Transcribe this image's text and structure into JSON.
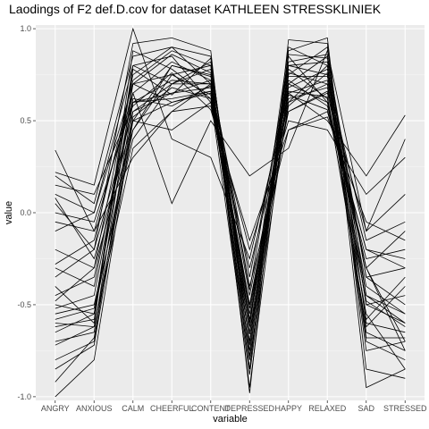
{
  "chart_data": {
    "type": "line",
    "title": "Laodings of F2 def.D.cov for dataset KATHLEEN STRESSKLINIEK",
    "xlabel": "variable",
    "ylabel": "value",
    "categories": [
      "ANGRY",
      "ANXIOUS",
      "CALM",
      "CHEERFUL",
      "CONTENT",
      "DEPRESSED",
      "HAPPY",
      "RELAXED",
      "SAD",
      "STRESSED"
    ],
    "ylim": [
      -1.02,
      1.02
    ],
    "yticks": [
      -1.0,
      -0.5,
      0.0,
      0.5,
      1.0
    ],
    "ytick_labels": [
      "-1.0",
      "-0.5",
      "0.0",
      "0.5",
      "1.0"
    ],
    "grid": true,
    "legend": "none",
    "colors": {
      "panel": "#ebebeb",
      "grid_major": "#ffffff",
      "grid_minor": "#f5f5f5",
      "line": "#000000",
      "tick_text": "#4d4d4d"
    },
    "series": [
      {
        "values": [
          -1.0,
          -0.8,
          0.5,
          0.8,
          0.75,
          -0.95,
          0.7,
          0.6,
          -0.3,
          -0.7
        ]
      },
      {
        "values": [
          -0.92,
          -0.68,
          0.55,
          0.7,
          0.7,
          -0.8,
          0.6,
          0.8,
          -0.5,
          -0.6
        ]
      },
      {
        "values": [
          -0.8,
          -0.7,
          0.6,
          0.65,
          0.72,
          -0.7,
          0.75,
          0.9,
          -0.6,
          -0.65
        ]
      },
      {
        "values": [
          -0.72,
          -0.62,
          0.45,
          0.75,
          0.8,
          -0.6,
          0.65,
          0.72,
          -0.4,
          -0.55
        ]
      },
      {
        "values": [
          -0.7,
          -0.65,
          0.7,
          0.6,
          0.65,
          -0.75,
          0.8,
          0.75,
          -0.7,
          -0.8
        ]
      },
      {
        "values": [
          -0.65,
          -0.55,
          0.8,
          0.85,
          0.6,
          -0.5,
          0.55,
          0.65,
          -0.3,
          -0.75
        ]
      },
      {
        "values": [
          -0.6,
          -0.62,
          0.35,
          0.55,
          0.7,
          -0.55,
          0.7,
          0.85,
          -0.35,
          -0.5
        ]
      },
      {
        "values": [
          -0.55,
          -0.5,
          0.4,
          0.7,
          0.78,
          -0.85,
          0.85,
          0.6,
          -0.55,
          -0.85
        ]
      },
      {
        "values": [
          -0.52,
          -0.45,
          0.65,
          0.82,
          0.72,
          -0.45,
          0.6,
          0.7,
          -0.45,
          -0.6
        ]
      },
      {
        "values": [
          -0.5,
          -0.55,
          0.5,
          0.6,
          0.66,
          -0.65,
          0.72,
          0.58,
          -0.2,
          -0.3
        ]
      },
      {
        "values": [
          -0.48,
          -0.3,
          0.75,
          0.9,
          0.85,
          -0.78,
          0.78,
          0.62,
          -0.62,
          -0.4
        ]
      },
      {
        "values": [
          -0.45,
          -0.35,
          0.6,
          0.72,
          0.7,
          -0.4,
          0.45,
          0.55,
          -0.25,
          -0.2
        ]
      },
      {
        "values": [
          -0.4,
          -0.6,
          0.88,
          0.78,
          0.62,
          -0.6,
          0.9,
          0.8,
          -0.75,
          -0.7
        ]
      },
      {
        "values": [
          -0.35,
          -0.2,
          0.55,
          0.65,
          0.68,
          -0.5,
          0.62,
          0.68,
          -0.3,
          -0.1
        ]
      },
      {
        "values": [
          -0.3,
          -0.4,
          0.7,
          0.75,
          0.64,
          -0.7,
          0.68,
          0.78,
          -0.5,
          -0.45
        ]
      },
      {
        "values": [
          -0.2,
          -0.3,
          0.45,
          0.8,
          0.74,
          -0.35,
          0.74,
          0.74,
          -0.15,
          -0.05
        ]
      },
      {
        "values": [
          -0.1,
          0.0,
          0.8,
          0.7,
          0.82,
          -0.62,
          0.82,
          0.86,
          -0.45,
          -0.55
        ]
      },
      {
        "values": [
          -0.05,
          -0.1,
          0.3,
          0.55,
          0.58,
          -0.3,
          0.55,
          0.66,
          -0.1,
          0.1
        ]
      },
      {
        "values": [
          0.0,
          -0.05,
          0.6,
          0.62,
          0.66,
          -0.52,
          0.64,
          0.56,
          -0.2,
          -0.25
        ]
      },
      {
        "values": [
          0.05,
          -0.2,
          0.92,
          0.95,
          0.88,
          -0.98,
          0.94,
          0.92,
          -0.95,
          -0.85
        ]
      },
      {
        "values": [
          0.1,
          0.0,
          0.7,
          0.86,
          0.76,
          -0.42,
          0.8,
          0.82,
          -0.35,
          -0.3
        ]
      },
      {
        "values": [
          0.08,
          -0.25,
          0.5,
          0.45,
          0.6,
          -0.2,
          0.5,
          0.45,
          0.1,
          0.3
        ]
      },
      {
        "values": [
          0.2,
          0.05,
          0.85,
          0.9,
          0.7,
          -0.85,
          0.88,
          0.95,
          -0.85,
          -0.9
        ]
      },
      {
        "values": [
          0.22,
          0.15,
          1.0,
          0.4,
          0.3,
          -0.25,
          0.65,
          0.5,
          0.2,
          0.53
        ]
      },
      {
        "values": [
          0.34,
          -0.1,
          0.65,
          0.05,
          0.5,
          0.2,
          0.35,
          0.88,
          -0.1,
          0.4
        ]
      },
      {
        "values": [
          -0.85,
          -0.72,
          0.52,
          0.68,
          0.62,
          -0.88,
          0.76,
          0.7,
          -0.65,
          -0.75
        ]
      },
      {
        "values": [
          -0.58,
          -0.52,
          0.62,
          0.58,
          0.69,
          -0.58,
          0.66,
          0.63,
          -0.48,
          -0.62
        ]
      },
      {
        "values": [
          -0.28,
          -0.15,
          0.72,
          0.88,
          0.8,
          -0.66,
          0.58,
          0.76,
          -0.58,
          -0.35
        ]
      },
      {
        "values": [
          0.15,
          0.1,
          0.58,
          0.76,
          0.56,
          -0.15,
          0.45,
          0.52,
          -0.05,
          -0.15
        ]
      },
      {
        "values": [
          -0.62,
          -0.58,
          0.78,
          0.64,
          0.84,
          -0.72,
          0.86,
          0.84,
          -0.68,
          -0.68
        ]
      }
    ]
  }
}
